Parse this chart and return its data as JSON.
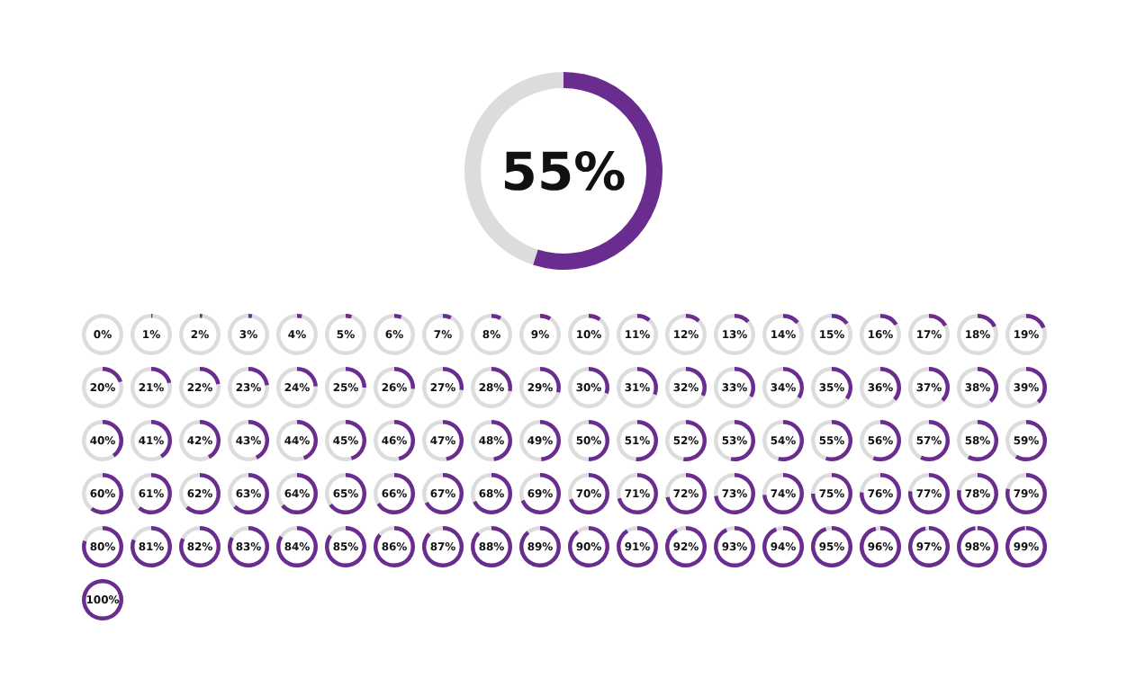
{
  "chart_data": [
    {
      "type": "donut",
      "title": "55%",
      "categories": [
        null,
        null
      ],
      "values": [
        55,
        45
      ],
      "colors": [
        "#6a2c8e",
        "#dcdcdc"
      ]
    },
    {
      "type": "other",
      "color": "#6a2c8e",
      "values": [
        0,
        1,
        2,
        3,
        4,
        5,
        6,
        7,
        8,
        9,
        10,
        11,
        12,
        13,
        14,
        15,
        16,
        17,
        18,
        19,
        20,
        21,
        22,
        23,
        24,
        25,
        26,
        27,
        28,
        29,
        30,
        31,
        32,
        33,
        34,
        35,
        36,
        37,
        38,
        39,
        40,
        41,
        42,
        43,
        44,
        45,
        46,
        47,
        48,
        49,
        50,
        51,
        52,
        53,
        54,
        55,
        56,
        57,
        58,
        59,
        60,
        61,
        62,
        63,
        64,
        65,
        66,
        67,
        68,
        69,
        70,
        71,
        72,
        73,
        74,
        75,
        76,
        77,
        78,
        79,
        80,
        81,
        82,
        83,
        84,
        85,
        86,
        87,
        88,
        89,
        90,
        91,
        92,
        93,
        94,
        95,
        96,
        97,
        98,
        99,
        100
      ],
      "value_labels": [
        "0%",
        "1%",
        "2%",
        "3%",
        "4%",
        "5%",
        "6%",
        "7%",
        "8%",
        "9%",
        "10%",
        "11%",
        "12%",
        "13%",
        "14%",
        "15%",
        "16%",
        "17%",
        "18%",
        "19%",
        "20%",
        "21%",
        "22%",
        "23%",
        "24%",
        "25%",
        "26%",
        "27%",
        "28%",
        "29%",
        "30%",
        "31%",
        "32%",
        "33%",
        "34%",
        "35%",
        "36%",
        "37%",
        "38%",
        "39%",
        "40%",
        "41%",
        "42%",
        "43%",
        "44%",
        "45%",
        "46%",
        "47%",
        "48%",
        "49%",
        "50%",
        "51%",
        "52%",
        "53%",
        "54%",
        "55%",
        "56%",
        "57%",
        "58%",
        "59%",
        "60%",
        "61%",
        "62%",
        "63%",
        "64%",
        "65%",
        "66%",
        "67%",
        "68%",
        "69%",
        "70%",
        "71%",
        "72%",
        "73%",
        "74%",
        "75%",
        "76%",
        "77%",
        "78%",
        "79%",
        "80%",
        "81%",
        "82%",
        "83%",
        "84%",
        "85%",
        "86%",
        "87%",
        "88%",
        "89%",
        "90%",
        "91%",
        "92%",
        "93%",
        "94%",
        "95%",
        "96%",
        "97%",
        "98%",
        "99%",
        "100%"
      ]
    }
  ]
}
